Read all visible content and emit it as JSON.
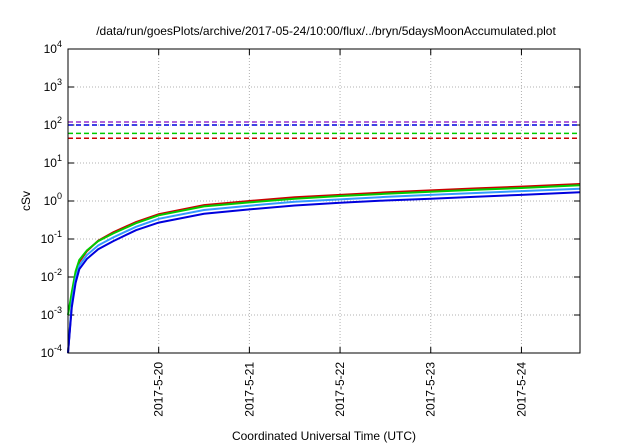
{
  "chart_data": {
    "type": "line",
    "title": "/data/run/goesPlots/archive/2017-05-24/10:00/flux/../bryn/5daysMoonAccumulated.plot",
    "xlabel": "Coordinated Universal Time (UTC)",
    "ylabel": "cSv",
    "x_scale": "time",
    "xlim": [
      "2017-05-19T00:00",
      "2017-05-24T15:30"
    ],
    "x_ticks": [
      "2017-5-20",
      "2017-5-21",
      "2017-5-22",
      "2017-5-23",
      "2017-5-24"
    ],
    "y_scale": "log",
    "ylim": [
      0.0001,
      10000
    ],
    "y_ticks": [
      {
        "base": "10",
        "exp": "-4"
      },
      {
        "base": "10",
        "exp": "-3"
      },
      {
        "base": "10",
        "exp": "-2"
      },
      {
        "base": "10",
        "exp": "-1"
      },
      {
        "base": "10",
        "exp": "0"
      },
      {
        "base": "10",
        "exp": "1"
      },
      {
        "base": "10",
        "exp": "2"
      },
      {
        "base": "10",
        "exp": "3"
      },
      {
        "base": "10",
        "exp": "4"
      }
    ],
    "grid": true,
    "series": [
      {
        "color": "#cc0000",
        "style": "solid",
        "x": [
          "2017-05-19T00:00",
          "2017-05-19T01:00",
          "2017-05-19T02:00",
          "2017-05-19T03:00",
          "2017-05-19T05:00",
          "2017-05-19T08:00",
          "2017-05-19T12:00",
          "2017-05-19T18:00",
          "2017-05-20T00:00",
          "2017-05-20T12:00",
          "2017-05-21T00:00",
          "2017-05-21T12:00",
          "2017-05-22T00:00",
          "2017-05-22T12:00",
          "2017-05-23T00:00",
          "2017-05-23T12:00",
          "2017-05-24T00:00",
          "2017-05-24T15:30"
        ],
        "y": [
          0.0001,
          0.002,
          0.011,
          0.025,
          0.048,
          0.09,
          0.15,
          0.28,
          0.45,
          0.78,
          1.0,
          1.25,
          1.45,
          1.68,
          1.9,
          2.15,
          2.4,
          2.8
        ]
      },
      {
        "color": "#00cc00",
        "style": "solid",
        "x": [
          "2017-05-19T00:00",
          "2017-05-19T01:00",
          "2017-05-19T02:00",
          "2017-05-19T03:00",
          "2017-05-19T05:00",
          "2017-05-19T08:00",
          "2017-05-19T12:00",
          "2017-05-19T18:00",
          "2017-05-20T00:00",
          "2017-05-20T12:00",
          "2017-05-21T00:00",
          "2017-05-21T12:00",
          "2017-05-22T00:00",
          "2017-05-22T12:00",
          "2017-05-23T00:00",
          "2017-05-23T12:00",
          "2017-05-24T00:00",
          "2017-05-24T15:30"
        ],
        "y": [
          0.001,
          0.004,
          0.014,
          0.028,
          0.05,
          0.088,
          0.14,
          0.26,
          0.42,
          0.72,
          0.92,
          1.15,
          1.35,
          1.55,
          1.75,
          1.98,
          2.2,
          2.6
        ]
      },
      {
        "color": "#3399ff",
        "style": "solid",
        "x": [
          "2017-05-19T00:00",
          "2017-05-19T01:00",
          "2017-05-19T02:00",
          "2017-05-19T03:00",
          "2017-05-19T05:00",
          "2017-05-19T08:00",
          "2017-05-19T12:00",
          "2017-05-19T18:00",
          "2017-05-20T00:00",
          "2017-05-20T12:00",
          "2017-05-21T00:00",
          "2017-05-21T12:00",
          "2017-05-22T00:00",
          "2017-05-22T12:00",
          "2017-05-23T00:00",
          "2017-05-23T12:00",
          "2017-05-24T00:00",
          "2017-05-24T15:30"
        ],
        "y": [
          0.0001,
          0.0022,
          0.009,
          0.02,
          0.038,
          0.068,
          0.11,
          0.21,
          0.34,
          0.58,
          0.75,
          0.95,
          1.1,
          1.28,
          1.45,
          1.62,
          1.82,
          2.1
        ]
      },
      {
        "color": "#0000dd",
        "style": "solid",
        "x": [
          "2017-05-19T00:00",
          "2017-05-19T01:00",
          "2017-05-19T02:00",
          "2017-05-19T03:00",
          "2017-05-19T05:00",
          "2017-05-19T08:00",
          "2017-05-19T12:00",
          "2017-05-19T18:00",
          "2017-05-20T00:00",
          "2017-05-20T12:00",
          "2017-05-21T00:00",
          "2017-05-21T12:00",
          "2017-05-22T00:00",
          "2017-05-22T12:00",
          "2017-05-23T00:00",
          "2017-05-23T12:00",
          "2017-05-24T00:00",
          "2017-05-24T15:30"
        ],
        "y": [
          0.0001,
          0.0016,
          0.007,
          0.016,
          0.03,
          0.054,
          0.088,
          0.17,
          0.27,
          0.46,
          0.6,
          0.76,
          0.9,
          1.03,
          1.15,
          1.3,
          1.45,
          1.7
        ]
      },
      {
        "color": "#9933cc",
        "style": "dashed",
        "x": [
          "2017-05-19T00:00",
          "2017-05-24T15:30"
        ],
        "y": [
          120,
          120
        ]
      },
      {
        "color": "#0000dd",
        "style": "dashed",
        "x": [
          "2017-05-19T00:00",
          "2017-05-24T15:30"
        ],
        "y": [
          100,
          100
        ]
      },
      {
        "color": "#00cc00",
        "style": "dashed",
        "x": [
          "2017-05-19T00:00",
          "2017-05-24T15:30"
        ],
        "y": [
          60,
          60
        ]
      },
      {
        "color": "#cc0000",
        "style": "dashed",
        "x": [
          "2017-05-19T00:00",
          "2017-05-24T15:30"
        ],
        "y": [
          45,
          45
        ]
      }
    ]
  }
}
